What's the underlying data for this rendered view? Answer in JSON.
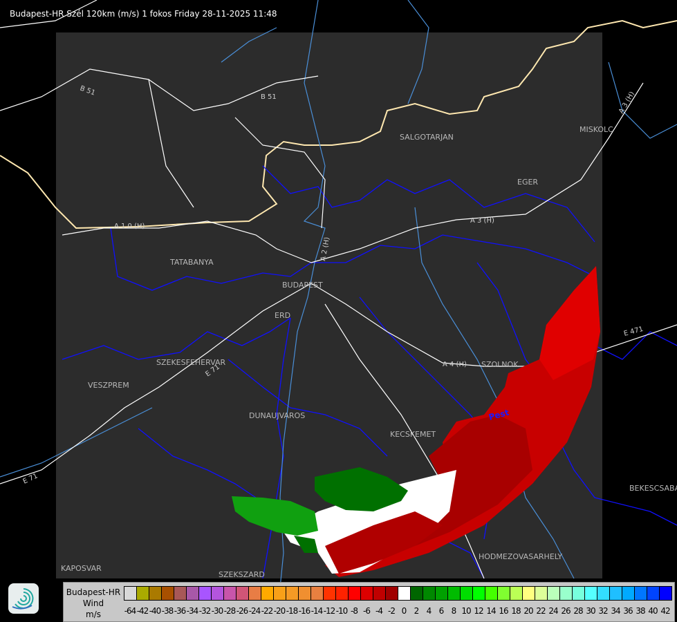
{
  "title": "Budapest-HR Szél 120km (m/s) 1 fokos Friday 28-11-2025 11:48",
  "map": {
    "cities": [
      "SALGOTARJAN",
      "MISKOLC",
      "EGER",
      "TATABANYA",
      "BUDAPEST",
      "ERD",
      "SZEKESFEHERVAR",
      "VESZPREM",
      "DUNAUJVAROS",
      "KECSKEMET",
      "SZOLNOK",
      "BEKESCSABA",
      "HODMEZOVASARHELY",
      "KAPOSVAR",
      "SZEKSZARD"
    ],
    "roads": [
      "B 51",
      "B 51",
      "A 3 (H)",
      "A 3 (H)",
      "A 1 0 (H)",
      "A 2 (H)",
      "A 4 (H)",
      "E 471",
      "E 71",
      "E 71"
    ],
    "river_label": "Pest",
    "colors": {
      "background": "#000000",
      "domain": "#2c2c2c",
      "borders": "#0000ff",
      "rivers": "#4a8fd8",
      "roads": "#ffffff"
    }
  },
  "legend": {
    "radar": "Budapest-HR",
    "quantity": "Wind",
    "unit": "m/s",
    "labels": [
      "-64",
      "-42",
      "-40",
      "-38",
      "-36",
      "-34",
      "-32",
      "-30",
      "-28",
      "-26",
      "-24",
      "-22",
      "-20",
      "-18",
      "-16",
      "-14",
      "-12",
      "-10",
      "-8",
      "-6",
      "-4",
      "-2",
      "0",
      "2",
      "4",
      "6",
      "8",
      "10",
      "12",
      "14",
      "16",
      "18",
      "20",
      "22",
      "24",
      "26",
      "28",
      "30",
      "32",
      "34",
      "36",
      "38",
      "40",
      "42"
    ],
    "colors": [
      "#d8d8d8",
      "#aaaa00",
      "#aa7a00",
      "#a85000",
      "#a85858",
      "#a858a8",
      "#a855ff",
      "#b455dd",
      "#c855aa",
      "#d05577",
      "#e87d45",
      "#ffaa00",
      "#f8a018",
      "#f59a25",
      "#f08f30",
      "#e88040",
      "#ff3300",
      "#ff2200",
      "#ff0000",
      "#dd0000",
      "#c00000",
      "#a00000",
      "#ffffff",
      "#006600",
      "#008800",
      "#00a000",
      "#00bb00",
      "#00dd00",
      "#00ff00",
      "#44ff00",
      "#80ff30",
      "#bbff55",
      "#ffff80",
      "#ddff99",
      "#bbffbb",
      "#99ffcc",
      "#77ffdd",
      "#55ffff",
      "#33ddff",
      "#1fbfff",
      "#00aaff",
      "#0077ff",
      "#0044ff",
      "#0000ff"
    ]
  }
}
